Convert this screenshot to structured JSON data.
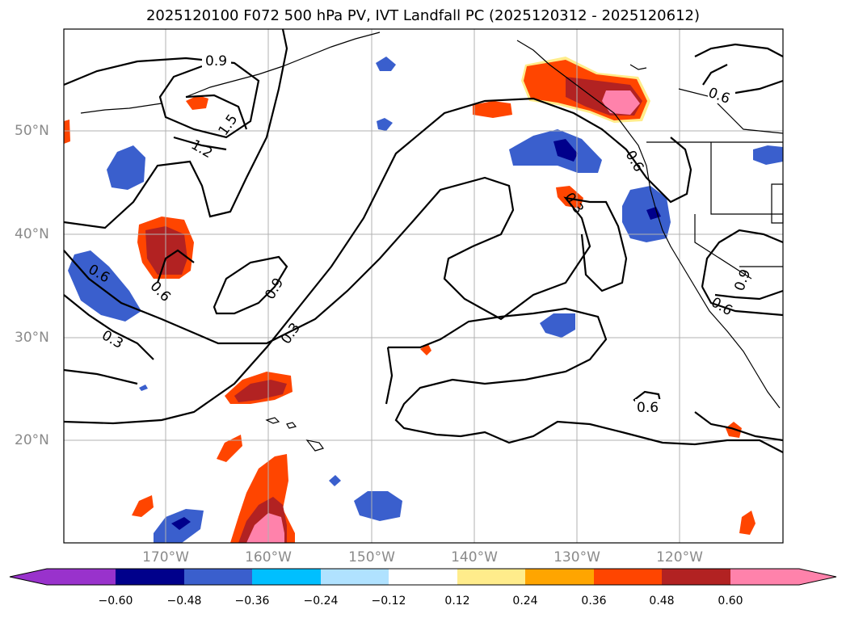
{
  "title": "2025120100 F072 500 hPa PV, IVT Landfall PC (2025120312 - 2025120612)",
  "lat_labels": [
    "50°N",
    "40°N",
    "30°N",
    "20°N"
  ],
  "lon_labels": [
    "170°W",
    "160°W",
    "150°W",
    "140°W",
    "130°W",
    "120°W"
  ],
  "contour_labels": [
    "0.9",
    "1.5",
    "1.2",
    "0.6",
    "0.6",
    "0.3",
    "0.9",
    "0.3",
    "0.3",
    "0.6",
    "0.6",
    "0.9",
    "0.6",
    "0.6"
  ],
  "colorbar": {
    "tick_labels": [
      "−0.60",
      "−0.48",
      "−0.36",
      "−0.24",
      "−0.12",
      "0.12",
      "0.24",
      "0.36",
      "0.48",
      "0.60"
    ],
    "colors": [
      "#9932cc",
      "#00008b",
      "#3a5fcd",
      "#00bfff",
      "#b0e2ff",
      "#ffffff",
      "#ffec8b",
      "#ffa500",
      "#ff4500",
      "#b22222",
      "#ff82ab"
    ]
  },
  "colors": {
    "coastline": "#000000",
    "grid": "#b0b0b0",
    "label": "#8a8a8a"
  }
}
